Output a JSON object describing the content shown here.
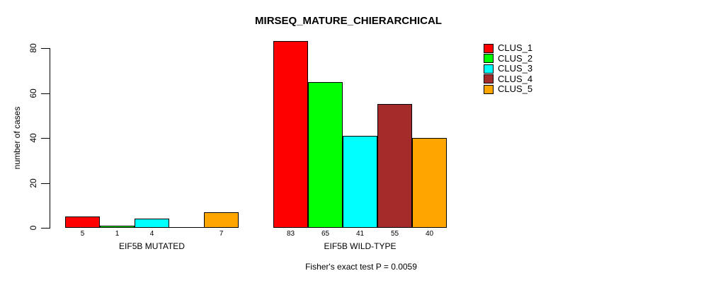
{
  "chart_data": {
    "type": "bar",
    "title": "MIRSEQ_MATURE_CHIERARCHICAL",
    "ylabel": "number of cases",
    "xlabel": "",
    "ylim": [
      0,
      80
    ],
    "yticks": [
      0,
      20,
      40,
      60,
      80
    ],
    "grid": false,
    "legend_position": "right-outside",
    "categories": [
      "EIF5B MUTATED",
      "EIF5B WILD-TYPE"
    ],
    "series": [
      {
        "name": "CLUS_1",
        "color": "#ff0000",
        "values": [
          5,
          83
        ]
      },
      {
        "name": "CLUS_2",
        "color": "#00ff00",
        "values": [
          1,
          65
        ]
      },
      {
        "name": "CLUS_3",
        "color": "#00ffff",
        "values": [
          4,
          41
        ]
      },
      {
        "name": "CLUS_4",
        "color": "#a52a2a",
        "values": [
          0,
          55
        ]
      },
      {
        "name": "CLUS_5",
        "color": "#ffa500",
        "values": [
          7,
          40
        ]
      }
    ],
    "bar_value_labels": [
      [
        "5",
        "1",
        "4",
        "",
        "7"
      ],
      [
        "83",
        "65",
        "41",
        "55",
        "40"
      ]
    ],
    "caption": "Fisher's exact test P = 0.0059"
  }
}
